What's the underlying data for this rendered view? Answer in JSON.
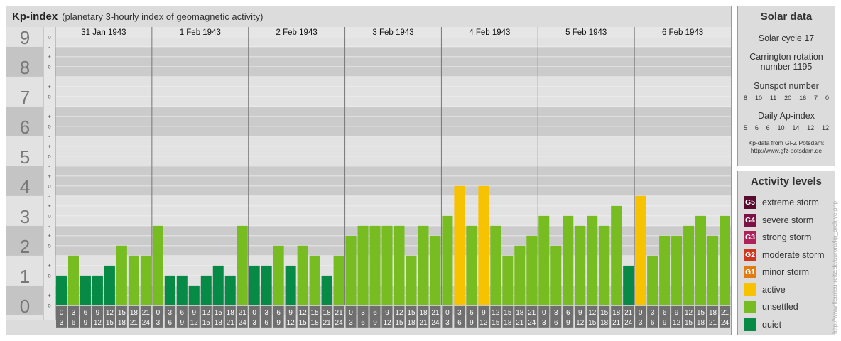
{
  "header": {
    "title": "Kp-index",
    "subtitle": "(planetary 3-hourly index of geomagnetic activity)"
  },
  "solar": {
    "title": "Solar data",
    "cycle": "Solar cycle 17",
    "carrington_line1": "Carrington rotation",
    "carrington_line2": "number 1195",
    "sunspot_label": "Sunspot number",
    "sunspot_values": [
      "8",
      "10",
      "11",
      "20",
      "16",
      "7",
      "0"
    ],
    "ap_label": "Daily Ap-index",
    "ap_values": [
      "5",
      "6",
      "6",
      "10",
      "14",
      "12",
      "12"
    ],
    "credit_line1": "Kp-data from GFZ Potsdam:",
    "credit_line2": "http://www.gfz-potsdam.de"
  },
  "levels": {
    "title": "Activity levels",
    "items": [
      {
        "badge": "G5",
        "label": "extreme storm",
        "color": "#5a0a2e"
      },
      {
        "badge": "G4",
        "label": "severe storm",
        "color": "#7d1044"
      },
      {
        "badge": "G3",
        "label": "strong storm",
        "color": "#b0205a"
      },
      {
        "badge": "G2",
        "label": "moderate storm",
        "color": "#d0351e"
      },
      {
        "badge": "G1",
        "label": "minor storm",
        "color": "#e27b12"
      },
      {
        "badge": "",
        "label": "active",
        "color": "#f7c200"
      },
      {
        "badge": "",
        "label": "unsettled",
        "color": "#77bc21"
      },
      {
        "badge": "",
        "label": "quiet",
        "color": "#078a46"
      }
    ]
  },
  "watermark": "http://www.fleurieu-reitz.de/aurora/kp_archive.php",
  "chart_data": {
    "type": "bar",
    "y_axis_labels": [
      "0",
      "1",
      "2",
      "3",
      "4",
      "5",
      "6",
      "7",
      "8",
      "9"
    ],
    "sub_ticks": [
      "o",
      "+",
      "-"
    ],
    "ylim": [
      0,
      9.33
    ],
    "days": [
      "31 Jan 1943",
      "1 Feb 1943",
      "2 Feb 1943",
      "3 Feb 1943",
      "4 Feb 1943",
      "5 Feb 1943",
      "6 Feb 1943"
    ],
    "interval_start": [
      "0",
      "3",
      "6",
      "9",
      "12",
      "15",
      "18",
      "21"
    ],
    "interval_end": [
      "3",
      "6",
      "9",
      "12",
      "15",
      "18",
      "21",
      "24"
    ],
    "values": [
      1.0,
      1.667,
      1.0,
      1.0,
      1.333,
      2.0,
      1.667,
      1.667,
      2.667,
      1.0,
      1.0,
      0.667,
      1.0,
      1.333,
      1.0,
      2.667,
      1.333,
      1.333,
      2.0,
      1.333,
      2.0,
      1.667,
      1.0,
      1.667,
      2.333,
      2.667,
      2.667,
      2.667,
      2.667,
      1.667,
      2.667,
      2.333,
      3.0,
      4.0,
      2.667,
      4.0,
      2.667,
      1.667,
      2.0,
      2.333,
      3.0,
      2.0,
      3.0,
      2.667,
      3.0,
      2.667,
      3.333,
      1.333,
      3.667,
      1.667,
      2.333,
      2.333,
      2.667,
      3.0,
      2.333,
      3.0
    ],
    "colors": {
      "quiet": "#078a46",
      "unsettled": "#77bc21",
      "active": "#f7c200"
    },
    "legend_position": "right"
  }
}
